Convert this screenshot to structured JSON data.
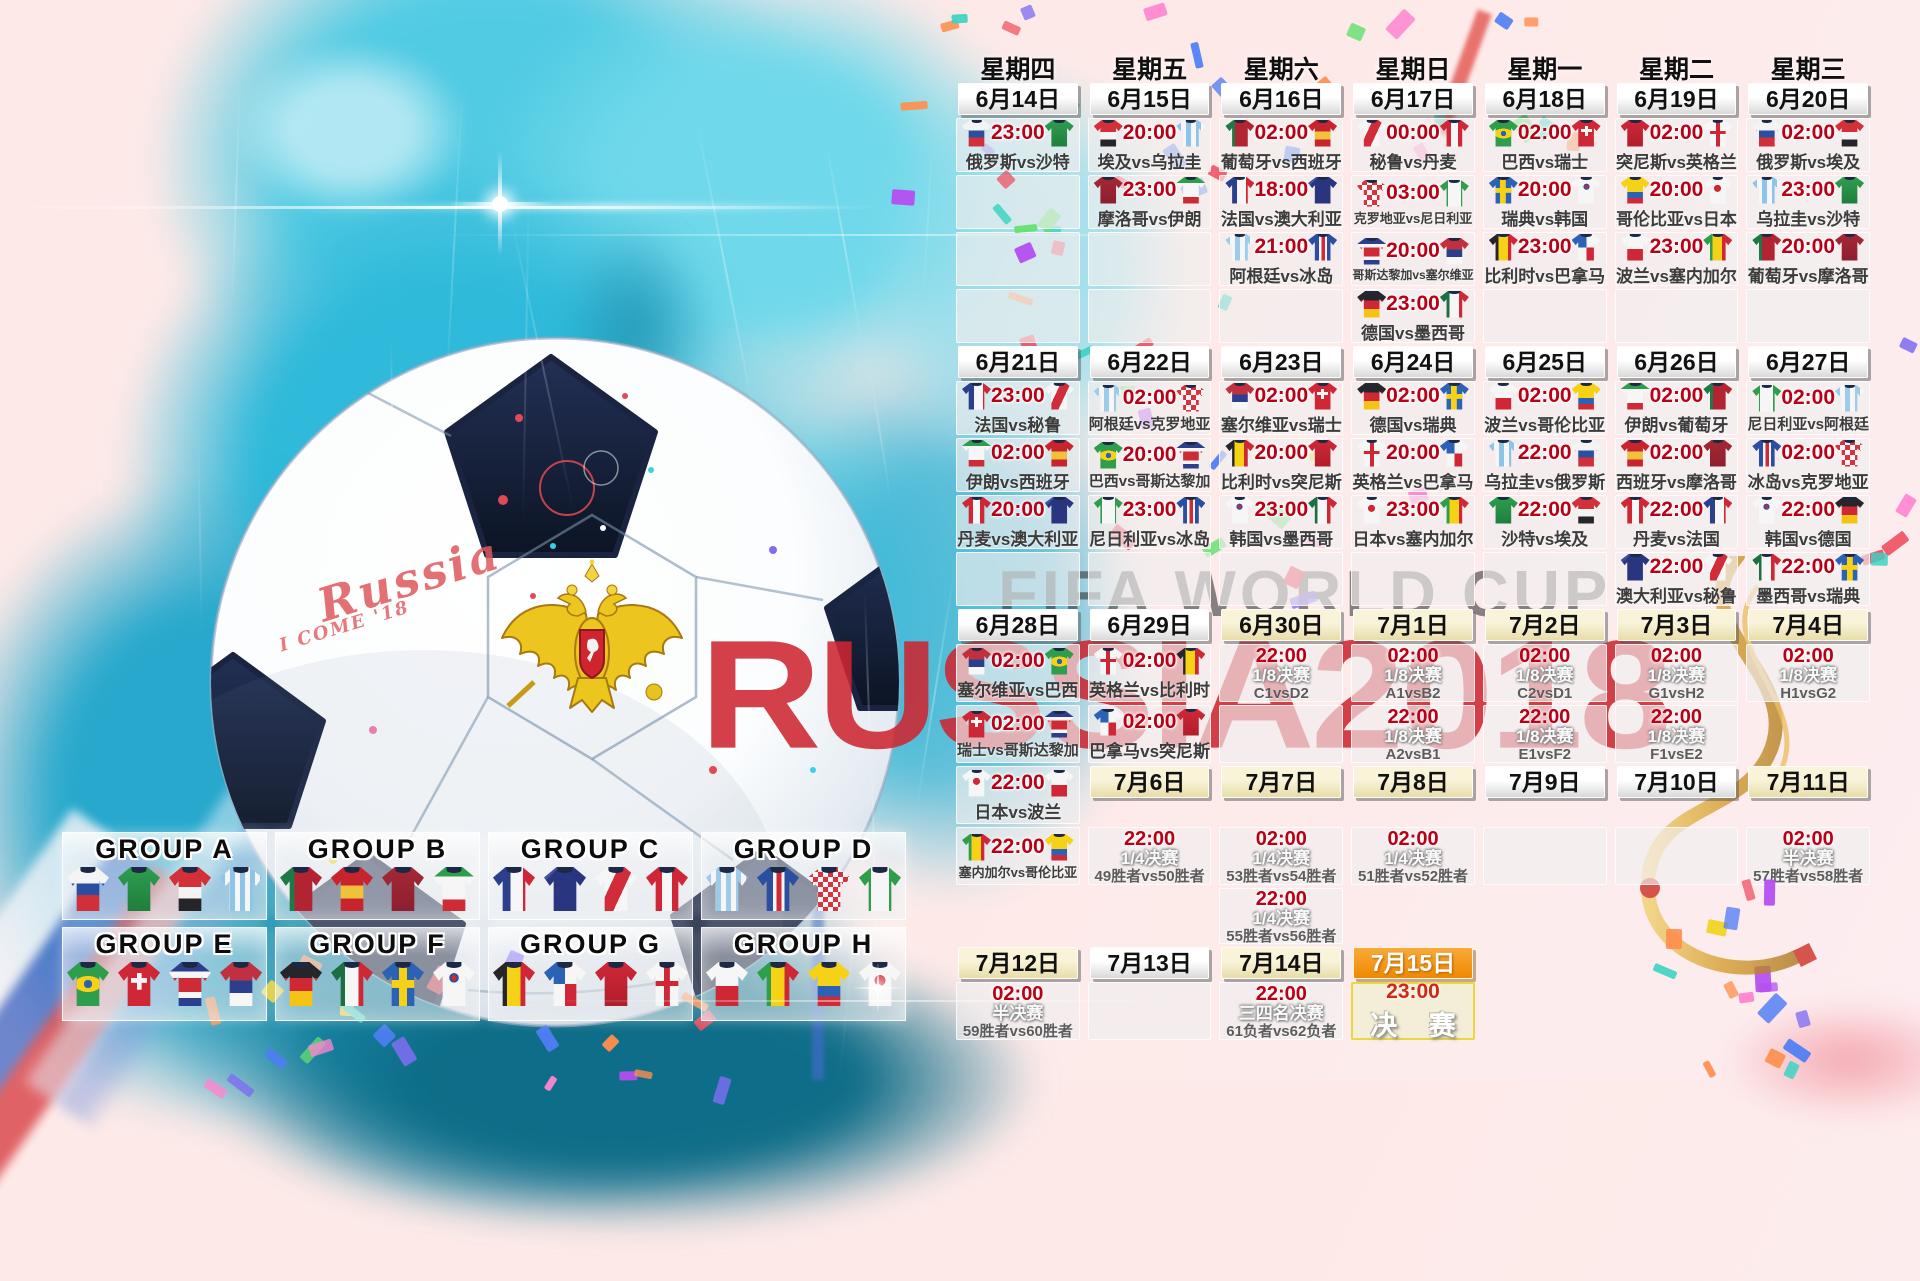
{
  "watermark": {
    "fifa": "FIFA WORLD CUP",
    "russia": "RUSSIA2018"
  },
  "ball": {
    "script_main": "Russia",
    "script_sub": "I COME '18"
  },
  "colors": {
    "accent_red_time": "#b80016",
    "date_orange": "#ee8903",
    "knockout_cream": "#f8f3d9",
    "splash_cyan": "#2fb9da",
    "watermark_red": "#cd2630"
  },
  "schedule": {
    "vs": "vs",
    "weekdays": [
      "星期四",
      "星期五",
      "星期六",
      "星期日",
      "星期一",
      "星期二",
      "星期三"
    ],
    "rows": [
      {
        "cells": [
          {
            "t": "w",
            "label": "星期四"
          },
          {
            "t": "w",
            "label": "星期五"
          },
          {
            "t": "w",
            "label": "星期六"
          },
          {
            "t": "w",
            "label": "星期日"
          },
          {
            "t": "w",
            "label": "星期一"
          },
          {
            "t": "w",
            "label": "星期二"
          },
          {
            "t": "w",
            "label": "星期三"
          }
        ]
      },
      {
        "cells": [
          {
            "t": "d",
            "label": "6月14日",
            "s": "w"
          },
          {
            "t": "d",
            "label": "6月15日",
            "s": "w"
          },
          {
            "t": "d",
            "label": "6月16日",
            "s": "w"
          },
          {
            "t": "d",
            "label": "6月17日",
            "s": "w"
          },
          {
            "t": "d",
            "label": "6月18日",
            "s": "w"
          },
          {
            "t": "d",
            "label": "6月19日",
            "s": "w"
          },
          {
            "t": "d",
            "label": "6月20日",
            "s": "w"
          }
        ]
      },
      {
        "cells": [
          {
            "t": "m",
            "time": "23:00",
            "h": "俄罗斯",
            "a": "沙特"
          },
          {
            "t": "m",
            "time": "20:00",
            "h": "埃及",
            "a": "乌拉圭"
          },
          {
            "t": "m",
            "time": "02:00",
            "h": "葡萄牙",
            "a": "西班牙"
          },
          {
            "t": "m",
            "time": "00:00",
            "h": "秘鲁",
            "a": "丹麦"
          },
          {
            "t": "m",
            "time": "02:00",
            "h": "巴西",
            "a": "瑞士"
          },
          {
            "t": "m",
            "time": "02:00",
            "h": "突尼斯",
            "a": "英格兰"
          },
          {
            "t": "m",
            "time": "02:00",
            "h": "俄罗斯",
            "a": "埃及"
          }
        ]
      },
      {
        "cells": [
          {
            "t": "e"
          },
          {
            "t": "m",
            "time": "23:00",
            "h": "摩洛哥",
            "a": "伊朗"
          },
          {
            "t": "m",
            "time": "18:00",
            "h": "法国",
            "a": "澳大利亚"
          },
          {
            "t": "m",
            "time": "03:00",
            "h": "克罗地亚",
            "a": "尼日利亚"
          },
          {
            "t": "m",
            "time": "20:00",
            "h": "瑞典",
            "a": "韩国"
          },
          {
            "t": "m",
            "time": "20:00",
            "h": "哥伦比亚",
            "a": "日本"
          },
          {
            "t": "m",
            "time": "23:00",
            "h": "乌拉圭",
            "a": "沙特"
          }
        ]
      },
      {
        "cells": [
          {
            "t": "e"
          },
          {
            "t": "e"
          },
          {
            "t": "m",
            "time": "21:00",
            "h": "阿根廷",
            "a": "冰岛"
          },
          {
            "t": "m",
            "time": "20:00",
            "h": "哥斯达黎加",
            "a": "塞尔维亚"
          },
          {
            "t": "m",
            "time": "23:00",
            "h": "比利时",
            "a": "巴拿马"
          },
          {
            "t": "m",
            "time": "23:00",
            "h": "波兰",
            "a": "塞内加尔"
          },
          {
            "t": "m",
            "time": "20:00",
            "h": "葡萄牙",
            "a": "摩洛哥"
          }
        ]
      },
      {
        "cells": [
          {
            "t": "e"
          },
          {
            "t": "e"
          },
          {
            "t": "e"
          },
          {
            "t": "m",
            "time": "23:00",
            "h": "德国",
            "a": "墨西哥"
          },
          {
            "t": "e"
          },
          {
            "t": "e"
          },
          {
            "t": "e"
          }
        ]
      },
      {
        "cells": [
          {
            "t": "d",
            "label": "6月21日",
            "s": "w"
          },
          {
            "t": "d",
            "label": "6月22日",
            "s": "w"
          },
          {
            "t": "d",
            "label": "6月23日",
            "s": "w"
          },
          {
            "t": "d",
            "label": "6月24日",
            "s": "w"
          },
          {
            "t": "d",
            "label": "6月25日",
            "s": "w"
          },
          {
            "t": "d",
            "label": "6月26日",
            "s": "w"
          },
          {
            "t": "d",
            "label": "6月27日",
            "s": "w"
          }
        ]
      },
      {
        "cells": [
          {
            "t": "m",
            "time": "23:00",
            "h": "法国",
            "a": "秘鲁"
          },
          {
            "t": "m",
            "time": "02:00",
            "h": "阿根廷",
            "a": "克罗地亚"
          },
          {
            "t": "m",
            "time": "02:00",
            "h": "塞尔维亚",
            "a": "瑞士"
          },
          {
            "t": "m",
            "time": "02:00",
            "h": "德国",
            "a": "瑞典"
          },
          {
            "t": "m",
            "time": "02:00",
            "h": "波兰",
            "a": "哥伦比亚"
          },
          {
            "t": "m",
            "time": "02:00",
            "h": "伊朗",
            "a": "葡萄牙"
          },
          {
            "t": "m",
            "time": "02:00",
            "h": "尼日利亚",
            "a": "阿根廷"
          }
        ]
      },
      {
        "cells": [
          {
            "t": "m",
            "time": "02:00",
            "h": "伊朗",
            "a": "西班牙"
          },
          {
            "t": "m",
            "time": "20:00",
            "h": "巴西",
            "a": "哥斯达黎加"
          },
          {
            "t": "m",
            "time": "20:00",
            "h": "比利时",
            "a": "突尼斯"
          },
          {
            "t": "m",
            "time": "20:00",
            "h": "英格兰",
            "a": "巴拿马"
          },
          {
            "t": "m",
            "time": "22:00",
            "h": "乌拉圭",
            "a": "俄罗斯"
          },
          {
            "t": "m",
            "time": "02:00",
            "h": "西班牙",
            "a": "摩洛哥"
          },
          {
            "t": "m",
            "time": "02:00",
            "h": "冰岛",
            "a": "克罗地亚"
          }
        ]
      },
      {
        "cells": [
          {
            "t": "m",
            "time": "20:00",
            "h": "丹麦",
            "a": "澳大利亚"
          },
          {
            "t": "m",
            "time": "23:00",
            "h": "尼日利亚",
            "a": "冰岛"
          },
          {
            "t": "m",
            "time": "23:00",
            "h": "韩国",
            "a": "墨西哥"
          },
          {
            "t": "m",
            "time": "23:00",
            "h": "日本",
            "a": "塞内加尔"
          },
          {
            "t": "m",
            "time": "22:00",
            "h": "沙特",
            "a": "埃及"
          },
          {
            "t": "m",
            "time": "22:00",
            "h": "丹麦",
            "a": "法国"
          },
          {
            "t": "m",
            "time": "22:00",
            "h": "韩国",
            "a": "德国"
          }
        ]
      },
      {
        "cells": [
          {
            "t": "e"
          },
          {
            "t": "e"
          },
          {
            "t": "e"
          },
          {
            "t": "e"
          },
          {
            "t": "e"
          },
          {
            "t": "m",
            "time": "22:00",
            "h": "澳大利亚",
            "a": "秘鲁"
          },
          {
            "t": "m",
            "time": "22:00",
            "h": "墨西哥",
            "a": "瑞典"
          }
        ]
      },
      {
        "cells": [
          {
            "t": "d",
            "label": "6月28日",
            "s": "w"
          },
          {
            "t": "d",
            "label": "6月29日",
            "s": "w"
          },
          {
            "t": "d",
            "label": "6月30日",
            "s": "c"
          },
          {
            "t": "d",
            "label": "7月1日",
            "s": "c"
          },
          {
            "t": "d",
            "label": "7月2日",
            "s": "c"
          },
          {
            "t": "d",
            "label": "7月3日",
            "s": "c"
          },
          {
            "t": "d",
            "label": "7月4日",
            "s": "c"
          }
        ]
      },
      {
        "cells": [
          {
            "t": "m",
            "time": "02:00",
            "h": "塞尔维亚",
            "a": "巴西"
          },
          {
            "t": "m",
            "time": "02:00",
            "h": "英格兰",
            "a": "比利时"
          },
          {
            "t": "k",
            "time": "22:00",
            "stage": "1/8决赛",
            "pair": "C1vsD2"
          },
          {
            "t": "k",
            "time": "02:00",
            "stage": "1/8决赛",
            "pair": "A1vsB2"
          },
          {
            "t": "k",
            "time": "02:00",
            "stage": "1/8决赛",
            "pair": "C2vsD1"
          },
          {
            "t": "k",
            "time": "02:00",
            "stage": "1/8决赛",
            "pair": "G1vsH2"
          },
          {
            "t": "k",
            "time": "02:00",
            "stage": "1/8决赛",
            "pair": "H1vsG2"
          }
        ]
      },
      {
        "cells": [
          {
            "t": "m",
            "time": "02:00",
            "h": "瑞士",
            "a": "哥斯达黎加"
          },
          {
            "t": "m",
            "time": "02:00",
            "h": "巴拿马",
            "a": "突尼斯"
          },
          {
            "t": "e"
          },
          {
            "t": "k",
            "time": "22:00",
            "stage": "1/8决赛",
            "pair": "A2vsB1"
          },
          {
            "t": "k",
            "time": "22:00",
            "stage": "1/8决赛",
            "pair": "E1vsF2"
          },
          {
            "t": "k",
            "time": "22:00",
            "stage": "1/8决赛",
            "pair": "F1vsE2"
          },
          {
            "t": "n"
          }
        ]
      },
      {
        "cells": [
          {
            "t": "m",
            "time": "22:00",
            "h": "日本",
            "a": "波兰"
          },
          {
            "t": "d",
            "label": "7月6日",
            "s": "c"
          },
          {
            "t": "d",
            "label": "7月7日",
            "s": "c"
          },
          {
            "t": "d",
            "label": "7月8日",
            "s": "c"
          },
          {
            "t": "d",
            "label": "7月9日",
            "s": "w"
          },
          {
            "t": "d",
            "label": "7月10日",
            "s": "w"
          },
          {
            "t": "d",
            "label": "7月11日",
            "s": "c"
          }
        ]
      },
      {
        "cells": [
          {
            "t": "m",
            "time": "22:00",
            "h": "塞内加尔",
            "a": "哥伦比亚"
          },
          {
            "t": "k",
            "time": "22:00",
            "stage": "1/4决赛",
            "pair": "49胜者vs50胜者"
          },
          {
            "t": "k",
            "time": "02:00",
            "stage": "1/4决赛",
            "pair": "53胜者vs54胜者"
          },
          {
            "t": "k",
            "time": "02:00",
            "stage": "1/4决赛",
            "pair": "51胜者vs52胜者"
          },
          {
            "t": "e"
          },
          {
            "t": "e"
          },
          {
            "t": "k",
            "time": "02:00",
            "stage": "半决赛",
            "pair": "57胜者vs58胜者"
          }
        ]
      },
      {
        "cells": [
          {
            "t": "n"
          },
          {
            "t": "n"
          },
          {
            "t": "k",
            "time": "22:00",
            "stage": "1/4决赛",
            "pair": "55胜者vs56胜者"
          },
          {
            "t": "n"
          },
          {
            "t": "n"
          },
          {
            "t": "n"
          },
          {
            "t": "n"
          }
        ]
      },
      {
        "cells": [
          {
            "t": "d",
            "label": "7月12日",
            "s": "c"
          },
          {
            "t": "d",
            "label": "7月13日",
            "s": "w"
          },
          {
            "t": "d",
            "label": "7月14日",
            "s": "c"
          },
          {
            "t": "d",
            "label": "7月15日",
            "s": "o"
          },
          {
            "t": "n"
          },
          {
            "t": "n"
          },
          {
            "t": "n"
          }
        ]
      },
      {
        "cells": [
          {
            "t": "k",
            "time": "02:00",
            "stage": "半决赛",
            "pair": "59胜者vs60胜者"
          },
          {
            "t": "e"
          },
          {
            "t": "k",
            "time": "22:00",
            "stage": "三四名决赛",
            "pair": "61负者vs62负者"
          },
          {
            "t": "f",
            "time": "23:00",
            "label": "决 赛"
          },
          {
            "t": "n"
          },
          {
            "t": "n"
          },
          {
            "t": "n"
          }
        ]
      }
    ]
  },
  "groups": [
    {
      "label": "GROUP A",
      "teams": [
        "俄罗斯",
        "沙特",
        "埃及",
        "乌拉圭"
      ]
    },
    {
      "label": "GROUP B",
      "teams": [
        "葡萄牙",
        "西班牙",
        "摩洛哥",
        "伊朗"
      ]
    },
    {
      "label": "GROUP C",
      "teams": [
        "法国",
        "澳大利亚",
        "秘鲁",
        "丹麦"
      ]
    },
    {
      "label": "GROUP D",
      "teams": [
        "阿根廷",
        "冰岛",
        "克罗地亚",
        "尼日利亚"
      ]
    },
    {
      "label": "GROUP E",
      "teams": [
        "巴西",
        "瑞士",
        "哥斯达黎加",
        "塞尔维亚"
      ]
    },
    {
      "label": "GROUP F",
      "teams": [
        "德国",
        "墨西哥",
        "瑞典",
        "韩国"
      ]
    },
    {
      "label": "GROUP G",
      "teams": [
        "比利时",
        "巴拿马",
        "突尼斯",
        "英格兰"
      ]
    },
    {
      "label": "GROUP H",
      "teams": [
        "波兰",
        "塞内加尔",
        "哥伦比亚",
        "日本"
      ]
    }
  ],
  "kits": {
    "俄罗斯": "linear-gradient(180deg,#f4f4f4 0 38%,#2b4fa0 38% 64%,#d0303a 64%)",
    "沙特": "linear-gradient(180deg,#2e9e50,#1f7e3c)",
    "埃及": "linear-gradient(180deg,#d4303a 0 45%,#f4f4f4 45% 72%,#26262a 72%)",
    "乌拉圭": "repeating-linear-gradient(90deg,#8ec4e8 0 5px,#f6f6f6 5px 10px)",
    "葡萄牙": "linear-gradient(90deg,#1d7a44 0 34%,#b32433 34%)",
    "西班牙": "linear-gradient(180deg,#c8242e 0 42%,#f0c23a 42% 72%,#c8242e 72%)",
    "摩洛哥": "linear-gradient(180deg,#a52836,#8c1f2e)",
    "伊朗": "linear-gradient(180deg,#2f9e4c 0 22%,#f6f6f6 22% 74%,#cf2b36 74%)",
    "法国": "linear-gradient(90deg,#2b3f8c 0 42%,#f6f6f6 42% 72%,#d02737 72%)",
    "澳大利亚": "linear-gradient(135deg,#3d4f9e 0 18%,#2a3580 18%)",
    "秘鲁": "linear-gradient(115deg,#f6f6f6 0 38%,#d22b3a 38% 62%,#f6f6f6 62%)",
    "丹麦": "linear-gradient(90deg,#d02737 0 38%,#f6f6f6 38% 62%,#d02737 62%)",
    "阿根廷": "repeating-linear-gradient(90deg,#9ecbe8 0 5px,#f6f6f6 5px 10px)",
    "冰岛": "linear-gradient(90deg,#2b4fa0 0 38%,#f6f6f6 38% 46%,#cf2b36 46% 58%,#f6f6f6 58% 66%,#2b4fa0 66%)",
    "克罗地亚": "repeating-conic-gradient(#d8323c 0 25%,#f6f6f6 0 50%) 0 0/10px 10px",
    "尼日利亚": "linear-gradient(90deg,#2f9e4c 0 28%,#f6f6f6 28% 72%,#2f9e4c 72%)",
    "巴西": "radial-gradient(circle at 50% 50%,#2b62b5 0 13%,rgba(0,0,0,0) 14%),radial-gradient(ellipse 52% 30% at 50% 50%,#f5d216 0 60%,rgba(0,0,0,0) 61%),#2f9e4c",
    "瑞士": "linear-gradient(#f6f6f6,#f6f6f6) 50% 40%/38% 11% no-repeat,linear-gradient(#f6f6f6,#f6f6f6) 50% 40%/11% 38% no-repeat,#d02737",
    "哥斯达黎加": "linear-gradient(180deg,#2b3f8c 0 22%,#f6f6f6 22% 36%,#cf2b36 36% 68%,#f6f6f6 68% 82%,#2b3f8c 82%)",
    "塞尔维亚": "linear-gradient(180deg,#c03040 0 42%,#2b3f8c 42% 70%,#f6f6f6 70%)",
    "德国": "linear-gradient(180deg,#26262a 0 36%,#d02737 36% 66%,#f5c216 66%)",
    "墨西哥": "linear-gradient(90deg,#1d6e42 0 33%,#f6f6f6 33% 66%,#d02737 66%)",
    "瑞典": "linear-gradient(#f5d216,#f5d216) 50% 50%/100% 18% no-repeat,linear-gradient(#f5d216,#f5d216) 50% 50%/20% 100% no-repeat,#2b62b5",
    "韩国": "radial-gradient(circle at 50% 36%,#d02737 0 8%,#2b4fa0 8% 13%,rgba(0,0,0,0) 14%),#f6f6f6",
    "比利时": "linear-gradient(90deg,#26262a 0 33%,#f5d216 33% 66%,#d02737 66%)",
    "巴拿马": "conic-gradient(from 0deg at 50% 50%,#f6f6f6 0 25%,#d02737 25% 50%,#f6f6f6 50% 75%,#2b62b5 75%)",
    "突尼斯": "linear-gradient(180deg,#d02737,#b01e2c)",
    "英格兰": "linear-gradient(#d02737,#d02737) 50% 50%/100% 12% no-repeat,linear-gradient(#d02737,#d02737) 50% 50%/14% 100% no-repeat,#f6f6f6",
    "波兰": "linear-gradient(180deg,#f6f6f6 0 55%,#d02737 55%)",
    "塞内加尔": "linear-gradient(90deg,#2f9e4c 0 33%,#f5d216 33% 66%,#d02737 66%)",
    "哥伦比亚": "linear-gradient(180deg,#f5d216 0 55%,#2b62b5 55% 78%,#cf2b36 78%)",
    "日本": "radial-gradient(circle at 50% 42%,#d02737 0 16%,rgba(0,0,0,0) 17%),#f6f6f6"
  }
}
